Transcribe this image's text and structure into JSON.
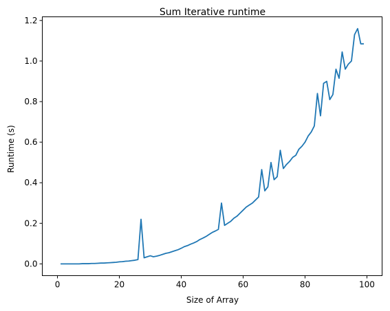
{
  "chart_data": {
    "type": "line",
    "title": "Sum Iterative runtime",
    "xlabel": "Size of Array",
    "ylabel": "Runtime (s)",
    "xlim": [
      -4.9,
      104.9
    ],
    "ylim": [
      -0.058,
      1.218
    ],
    "xticks": [
      0,
      20,
      40,
      60,
      80,
      100
    ],
    "yticks": [
      0.0,
      0.2,
      0.4,
      0.6,
      0.8,
      1.0,
      1.2
    ],
    "xtick_labels": [
      "0",
      "20",
      "40",
      "60",
      "80",
      "100"
    ],
    "ytick_labels": [
      "0.0",
      "0.2",
      "0.4",
      "0.6",
      "0.8",
      "1.0",
      "1.2"
    ],
    "grid": false,
    "legend": "none",
    "series": [
      {
        "color": "#1f77b4",
        "x": [
          1,
          2,
          3,
          4,
          5,
          6,
          7,
          8,
          9,
          10,
          11,
          12,
          13,
          14,
          15,
          16,
          17,
          18,
          19,
          20,
          21,
          22,
          23,
          24,
          25,
          26,
          27,
          28,
          29,
          30,
          31,
          32,
          33,
          34,
          35,
          36,
          37,
          38,
          39,
          40,
          41,
          42,
          43,
          44,
          45,
          46,
          47,
          48,
          49,
          50,
          51,
          52,
          53,
          54,
          55,
          56,
          57,
          58,
          59,
          60,
          61,
          62,
          63,
          64,
          65,
          66,
          67,
          68,
          69,
          70,
          71,
          72,
          73,
          74,
          75,
          76,
          77,
          78,
          79,
          80,
          81,
          82,
          83,
          84,
          85,
          86,
          87,
          88,
          89,
          90,
          91,
          92,
          93,
          94,
          95,
          96,
          97,
          98,
          99
        ],
        "y": [
          0.0,
          0.0,
          0.0,
          0.0,
          0.0,
          0.0,
          0.0,
          0.001,
          0.001,
          0.001,
          0.002,
          0.002,
          0.003,
          0.004,
          0.004,
          0.005,
          0.006,
          0.007,
          0.008,
          0.01,
          0.011,
          0.013,
          0.014,
          0.016,
          0.018,
          0.021,
          0.22,
          0.03,
          0.035,
          0.04,
          0.035,
          0.038,
          0.042,
          0.047,
          0.052,
          0.055,
          0.06,
          0.065,
          0.07,
          0.077,
          0.085,
          0.09,
          0.097,
          0.103,
          0.11,
          0.12,
          0.127,
          0.135,
          0.145,
          0.155,
          0.162,
          0.17,
          0.3,
          0.19,
          0.2,
          0.21,
          0.225,
          0.235,
          0.25,
          0.265,
          0.28,
          0.29,
          0.3,
          0.315,
          0.33,
          0.465,
          0.36,
          0.38,
          0.5,
          0.415,
          0.43,
          0.56,
          0.47,
          0.49,
          0.505,
          0.525,
          0.535,
          0.565,
          0.58,
          0.6,
          0.63,
          0.65,
          0.68,
          0.84,
          0.73,
          0.89,
          0.9,
          0.81,
          0.835,
          0.96,
          0.915,
          1.045,
          0.96,
          0.985,
          1.0,
          1.13,
          1.16,
          1.085,
          1.085
        ]
      }
    ]
  }
}
